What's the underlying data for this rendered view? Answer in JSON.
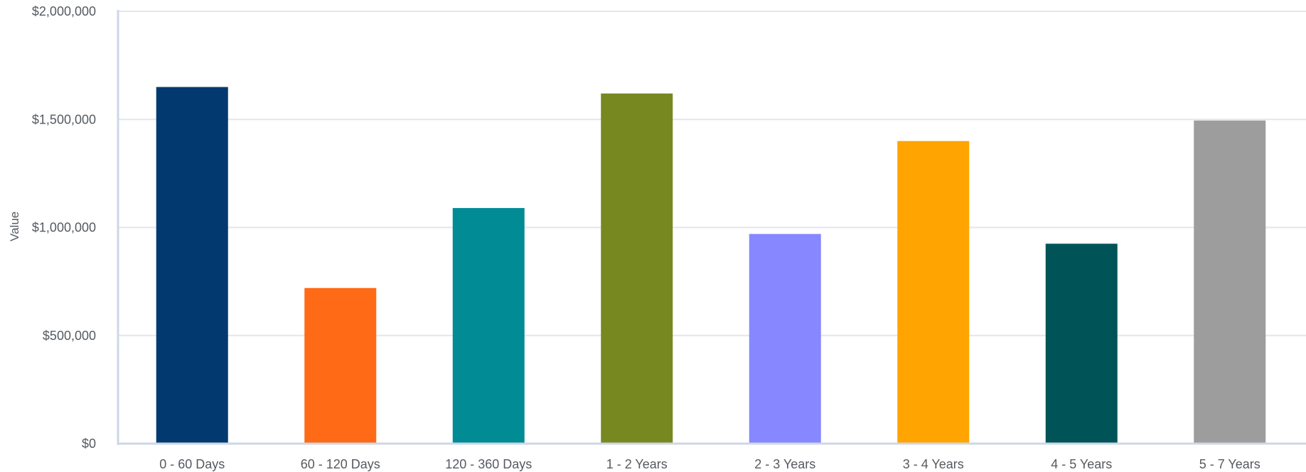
{
  "chart_data": {
    "type": "bar",
    "title": "",
    "xlabel": "",
    "ylabel": "Value",
    "ylim": [
      0,
      2000000
    ],
    "y_ticks": [
      0,
      500000,
      1000000,
      1500000,
      2000000
    ],
    "y_tick_labels": [
      "$0",
      "$500,000",
      "$1,000,000",
      "$1,500,000",
      "$2,000,000"
    ],
    "grid": true,
    "legend": "none",
    "categories": [
      "0 - 60 Days",
      "60 - 120 Days",
      "120 - 360 Days",
      "1 - 2 Years",
      "2 - 3 Years",
      "3 - 4 Years",
      "4 - 5 Years",
      "5 - 7 Years"
    ],
    "values": [
      1650000,
      720000,
      1090000,
      1620000,
      970000,
      1400000,
      925000,
      1495000
    ],
    "colors": [
      "#023a70",
      "#ff6a17",
      "#008b95",
      "#778821",
      "#8788ff",
      "#ffa401",
      "#005457",
      "#9d9d9d"
    ],
    "style": {
      "grid_color": "#e4e6ea",
      "axis_color": "#cdd7e6",
      "text_color": "#555a60"
    }
  }
}
